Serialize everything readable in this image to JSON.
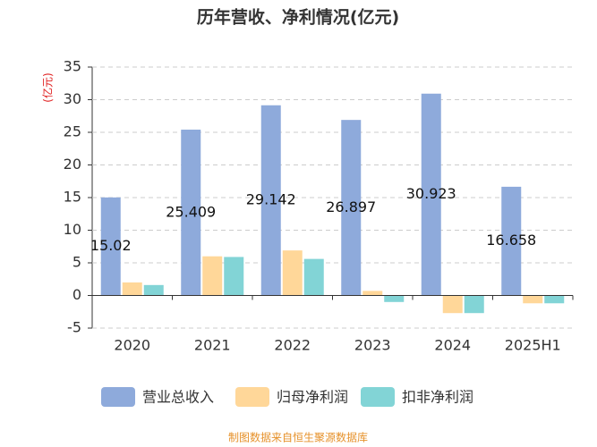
{
  "chart_data": {
    "type": "bar",
    "title": "历年营收、净利情况(亿元)",
    "y_label": "(亿元)",
    "categories": [
      "2020",
      "2021",
      "2022",
      "2023",
      "2024",
      "2025H1"
    ],
    "series": [
      {
        "name": "营业总收入",
        "color": "#8eaadb",
        "values": [
          15.02,
          25.409,
          29.142,
          26.897,
          30.923,
          16.658
        ],
        "show_labels": true
      },
      {
        "name": "归母净利润",
        "color": "#ffd799",
        "values": [
          2.0,
          6.0,
          6.9,
          0.7,
          -2.7,
          -1.2
        ]
      },
      {
        "name": "扣非净利润",
        "color": "#82d4d6",
        "values": [
          1.6,
          5.9,
          5.6,
          -1.0,
          -2.7,
          -1.2
        ]
      }
    ],
    "ylim": [
      -5,
      35
    ],
    "yticks": [
      -5,
      0,
      5,
      10,
      15,
      20,
      25,
      30,
      35
    ],
    "grid": true,
    "source": "制图数据来自恒生聚源数据库"
  }
}
